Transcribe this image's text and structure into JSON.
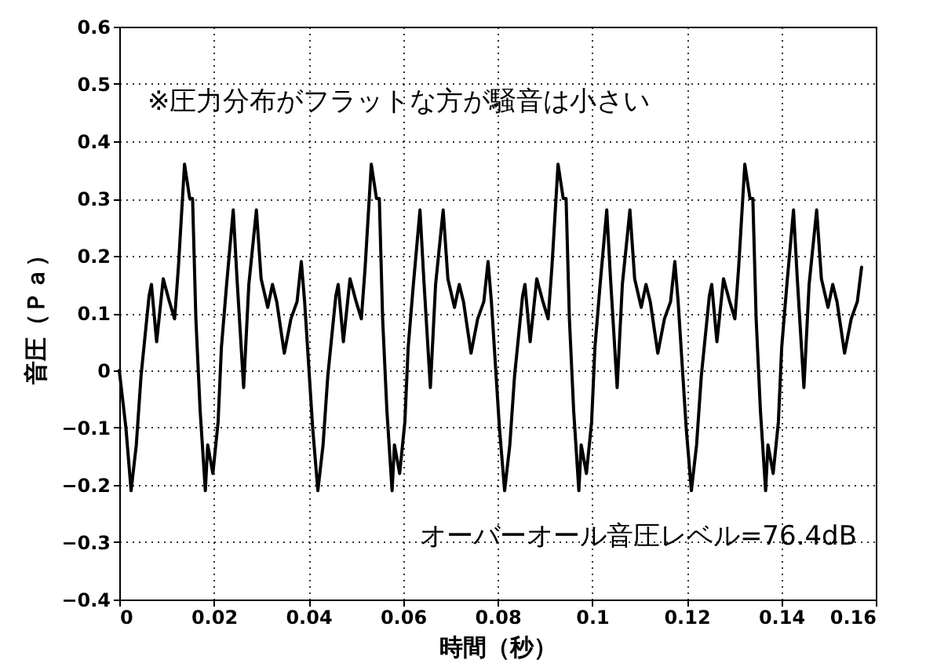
{
  "chart_data": {
    "type": "line",
    "xlabel": "時間（秒）",
    "ylabel": "音圧（Ｐａ）",
    "annotations": [
      "※圧力分布がフラットな方が騒音は小さい",
      "オーバーオール音圧レベル=76.4dB"
    ],
    "x": [
      0,
      0.0014,
      0.0025,
      0.0036,
      0.0046,
      0.0063,
      0.0068,
      0.0079,
      0.0093,
      0.0106,
      0.0117,
      0.0125,
      0.0138,
      0.0149,
      0.0155,
      0.0162,
      0.0171,
      0.0182,
      0.0187,
      0.0198,
      0.0209,
      0.0216,
      0.0227,
      0.0241,
      0.0249,
      0.0263,
      0.0274,
      0.029,
      0.03,
      0.0314,
      0.0324,
      0.0333,
      0.0349,
      0.0363,
      0.0376,
      0.0385,
      0.0392,
      0.0409,
      0.042,
      0.0431,
      0.0441,
      0.0458,
      0.0463,
      0.0474,
      0.0488,
      0.0501,
      0.0512,
      0.052,
      0.0533,
      0.0544,
      0.055,
      0.0557,
      0.0566,
      0.0577,
      0.0582,
      0.0593,
      0.0604,
      0.0611,
      0.0622,
      0.0636,
      0.0644,
      0.0658,
      0.0669,
      0.0685,
      0.0695,
      0.0709,
      0.0719,
      0.0728,
      0.0744,
      0.0758,
      0.0771,
      0.078,
      0.0787,
      0.0804,
      0.0815,
      0.0826,
      0.0836,
      0.0853,
      0.0858,
      0.0869,
      0.0883,
      0.0896,
      0.0907,
      0.0915,
      0.0928,
      0.0939,
      0.0945,
      0.0952,
      0.0961,
      0.0972,
      0.0977,
      0.0988,
      0.0999,
      0.1006,
      0.1017,
      0.1031,
      0.1039,
      0.1053,
      0.1064,
      0.108,
      0.109,
      0.1104,
      0.1114,
      0.1123,
      0.1139,
      0.1153,
      0.1166,
      0.1175,
      0.1182,
      0.1199,
      0.121,
      0.1221,
      0.1231,
      0.1248,
      0.1253,
      0.1264,
      0.1278,
      0.1291,
      0.1302,
      0.131,
      0.1323,
      0.1334,
      0.134,
      0.1347,
      0.1356,
      0.1367,
      0.1372,
      0.1383,
      0.1394,
      0.1401,
      0.1412,
      0.1426,
      0.1434,
      0.1448,
      0.1459,
      0.1475,
      0.1485,
      0.1499,
      0.1509,
      0.1518,
      0.1534,
      0.1548,
      0.1561,
      0.157
    ],
    "series": [
      {
        "color": "#000000",
        "values": [
          0,
          -0.1,
          -0.21,
          -0.13,
          -0.01,
          0.13,
          0.15,
          0.05,
          0.16,
          0.12,
          0.09,
          0.18,
          0.36,
          0.3,
          0.3,
          0.09,
          -0.07,
          -0.21,
          -0.13,
          -0.18,
          -0.09,
          0.04,
          0.15,
          0.28,
          0.16,
          -0.03,
          0.15,
          0.28,
          0.16,
          0.11,
          0.15,
          0.12,
          0.03,
          0.09,
          0.12,
          0.19,
          0.12,
          -0.1,
          -0.21,
          -0.13,
          -0.01,
          0.13,
          0.15,
          0.05,
          0.16,
          0.12,
          0.09,
          0.18,
          0.36,
          0.3,
          0.3,
          0.09,
          -0.07,
          -0.21,
          -0.13,
          -0.18,
          -0.09,
          0.04,
          0.15,
          0.28,
          0.16,
          -0.03,
          0.15,
          0.28,
          0.16,
          0.11,
          0.15,
          0.12,
          0.03,
          0.09,
          0.12,
          0.19,
          0.12,
          -0.1,
          -0.21,
          -0.13,
          -0.01,
          0.13,
          0.15,
          0.05,
          0.16,
          0.12,
          0.09,
          0.18,
          0.36,
          0.3,
          0.3,
          0.09,
          -0.07,
          -0.21,
          -0.13,
          -0.18,
          -0.09,
          0.04,
          0.15,
          0.28,
          0.16,
          -0.03,
          0.15,
          0.28,
          0.16,
          0.11,
          0.15,
          0.12,
          0.03,
          0.09,
          0.12,
          0.19,
          0.12,
          -0.1,
          -0.21,
          -0.13,
          -0.01,
          0.13,
          0.15,
          0.05,
          0.16,
          0.12,
          0.09,
          0.18,
          0.36,
          0.3,
          0.3,
          0.09,
          -0.07,
          -0.21,
          -0.13,
          -0.18,
          -0.09,
          0.04,
          0.15,
          0.28,
          0.16,
          -0.03,
          0.15,
          0.28,
          0.16,
          0.11,
          0.15,
          0.12,
          0.03,
          0.09,
          0.12,
          0.18
        ]
      }
    ],
    "xlim": [
      0,
      0.16
    ],
    "ylim": [
      -0.4,
      0.6
    ],
    "xticks": [
      0,
      0.02,
      0.04,
      0.06,
      0.08,
      0.1,
      0.12,
      0.14,
      0.16
    ],
    "yticks": [
      -0.4,
      -0.3,
      -0.2,
      -0.1,
      0,
      0.1,
      0.2,
      0.3,
      0.4,
      0.5,
      0.6
    ],
    "grid": true,
    "line_style": "solid"
  }
}
